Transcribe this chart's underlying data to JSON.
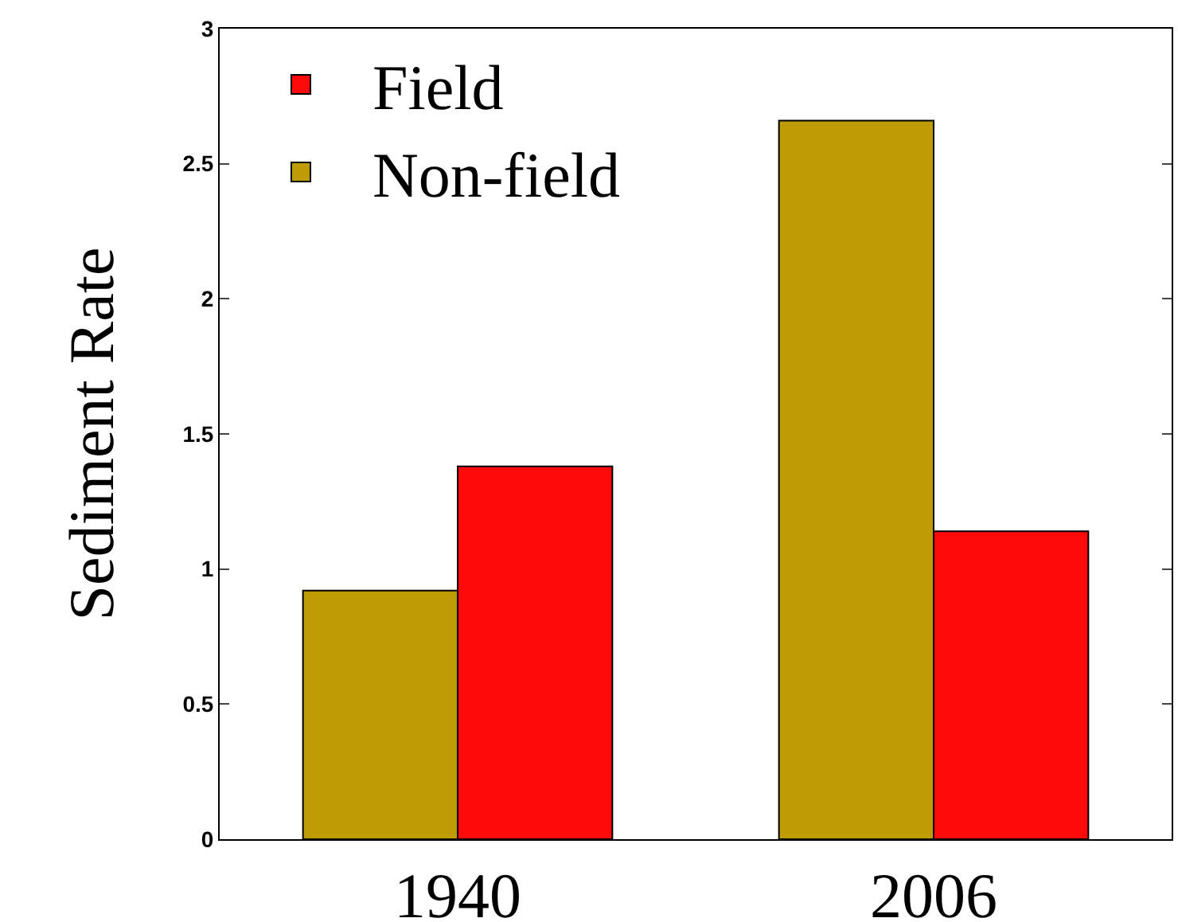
{
  "chart_data": {
    "type": "bar",
    "ylabel": "Sediment Rate",
    "categories": [
      "1940",
      "2006"
    ],
    "series": [
      {
        "name": "Non-field",
        "color": "#bf9b06",
        "values": [
          0.92,
          2.66
        ]
      },
      {
        "name": "Field",
        "color": "#ff0a0a",
        "values": [
          1.38,
          1.14
        ]
      }
    ],
    "ylim": [
      0,
      3
    ],
    "yticks": [
      0,
      0.5,
      1,
      1.5,
      2,
      2.5,
      3
    ],
    "grid": false,
    "legend": "top left"
  }
}
